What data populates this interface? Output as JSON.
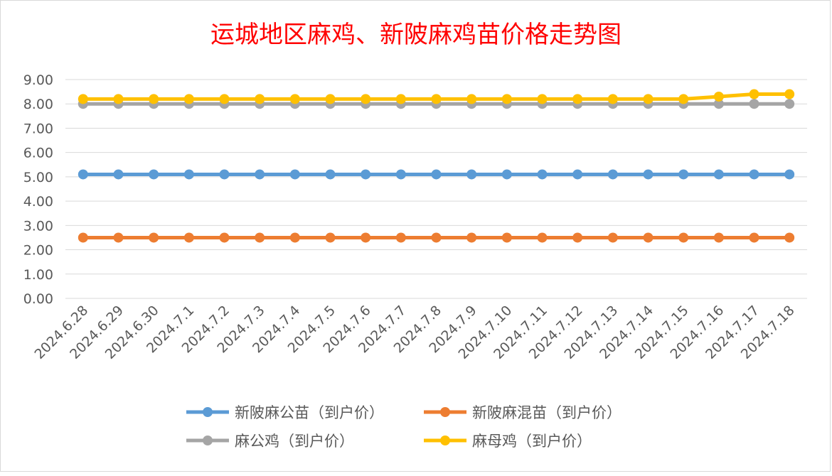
{
  "chart_data": {
    "type": "line",
    "title": "运城地区麻鸡、新陂麻鸡苗价格走势图",
    "xlabel": "",
    "ylabel": "",
    "ylim": [
      0,
      9
    ],
    "y_ticks": [
      "0.00",
      "1.00",
      "2.00",
      "3.00",
      "4.00",
      "5.00",
      "6.00",
      "7.00",
      "8.00",
      "9.00"
    ],
    "grid": true,
    "legend_position": "bottom",
    "categories": [
      "2024.6.28",
      "2024.6.29",
      "2024.6.30",
      "2024.7.1",
      "2024.7.2",
      "2024.7.3",
      "2024.7.4",
      "2024.7.5",
      "2024.7.6",
      "2024.7.7",
      "2024.7.8",
      "2024.7.9",
      "2024.7.10",
      "2024.7.11",
      "2024.7.12",
      "2024.7.13",
      "2024.7.14",
      "2024.7.15",
      "2024.7.16",
      "2024.7.17",
      "2024.7.18"
    ],
    "series": [
      {
        "name": "新陂麻公苗（到户价）",
        "color": "#5B9BD5",
        "values": [
          5.1,
          5.1,
          5.1,
          5.1,
          5.1,
          5.1,
          5.1,
          5.1,
          5.1,
          5.1,
          5.1,
          5.1,
          5.1,
          5.1,
          5.1,
          5.1,
          5.1,
          5.1,
          5.1,
          5.1,
          5.1
        ]
      },
      {
        "name": "新陂麻混苗（到户价）",
        "color": "#ED7D31",
        "values": [
          2.5,
          2.5,
          2.5,
          2.5,
          2.5,
          2.5,
          2.5,
          2.5,
          2.5,
          2.5,
          2.5,
          2.5,
          2.5,
          2.5,
          2.5,
          2.5,
          2.5,
          2.5,
          2.5,
          2.5,
          2.5
        ]
      },
      {
        "name": "麻公鸡（到户价）",
        "color": "#A5A5A5",
        "values": [
          8,
          8,
          8,
          8,
          8,
          8,
          8,
          8,
          8,
          8,
          8,
          8,
          8,
          8,
          8,
          8,
          8,
          8,
          8,
          8,
          8
        ]
      },
      {
        "name": "麻母鸡（到户价）",
        "color": "#FFC000",
        "values": [
          8.2,
          8.2,
          8.2,
          8.2,
          8.2,
          8.2,
          8.2,
          8.2,
          8.2,
          8.2,
          8.2,
          8.2,
          8.2,
          8.2,
          8.2,
          8.2,
          8.2,
          8.2,
          8.3,
          8.4,
          8.4
        ]
      }
    ]
  },
  "colors": {
    "title": "#FF0000",
    "axis_text": "#595959",
    "grid": "#D9D9D9",
    "frame": "#D9D9D9"
  }
}
